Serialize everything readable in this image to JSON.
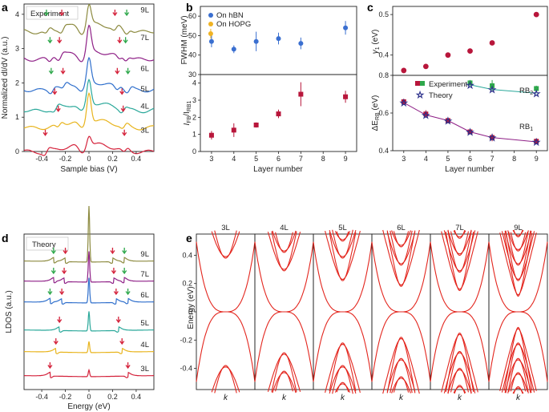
{
  "figure": {
    "panel_letters": [
      "a",
      "b",
      "c",
      "d",
      "e"
    ],
    "colors": {
      "olive": "#8c8a3f",
      "purple": "#8e1f86",
      "blue": "#2f6fcc",
      "teal": "#2aa89a",
      "gold": "#e8b41c",
      "red": "#d4213a",
      "green": "#2ea84b",
      "crimson": "#b8163b",
      "navy": "#2b2f8a",
      "hbn": "#3a6fd0",
      "hopg": "#f0b323",
      "band": "#e3261e"
    }
  },
  "chart_data": [
    {
      "id": "a",
      "type": "line",
      "legend_box": "Experiment",
      "xlabel": "Sample bias (V)",
      "ylabel": "Normalized dI/dV (a.u.)",
      "xlim": [
        -0.55,
        0.55
      ],
      "ylim": [
        0,
        4.3
      ],
      "xticks": [
        "-0.4",
        "-0.2",
        "0",
        "0.2",
        "0.4"
      ],
      "xtick_values": [
        -0.4,
        -0.2,
        0,
        0.2,
        0.4
      ],
      "yticks": [
        "0",
        "1",
        "2",
        "3",
        "4"
      ],
      "ytick_values": [
        0,
        1,
        2,
        3,
        4
      ],
      "series": [
        {
          "name": "9L",
          "color_key": "olive",
          "offset": 3.6,
          "peak": 0.6,
          "features": [
            -0.36,
            -0.23,
            0.22,
            0.32
          ],
          "green": [
            -0.36,
            0.32
          ]
        },
        {
          "name": "7L",
          "color_key": "purple",
          "offset": 2.8,
          "peak": 0.75,
          "features": [
            -0.33,
            -0.25,
            0.26,
            0.31
          ],
          "green": [
            -0.33,
            0.31
          ]
        },
        {
          "name": "6L",
          "color_key": "blue",
          "offset": 1.9,
          "peak": 0.7,
          "features": [
            -0.32,
            -0.22,
            0.24,
            0.33
          ],
          "green": [
            -0.32,
            0.33
          ]
        },
        {
          "name": "5L",
          "color_key": "teal",
          "offset": 1.3,
          "peak": 0.7,
          "features": [
            -0.29,
            0.28
          ],
          "green": []
        },
        {
          "name": "4L",
          "color_key": "gold",
          "offset": 0.8,
          "peak": 0.85,
          "features": [
            -0.26,
            0.29
          ],
          "green": []
        },
        {
          "name": "3L",
          "color_key": "red",
          "offset": 0.1,
          "peak": 0.3,
          "features": [
            -0.37,
            0.3
          ],
          "green": []
        }
      ]
    },
    {
      "id": "b_top",
      "type": "scatter",
      "ylabel": "FWHM (meV)",
      "xlim": [
        2.5,
        9.5
      ],
      "ylim": [
        30,
        65
      ],
      "yticks": [
        "30",
        "40",
        "50",
        "60"
      ],
      "ytick_values": [
        30,
        40,
        50,
        60
      ],
      "legend": [
        "On hBN",
        "On HOPG"
      ],
      "series": [
        {
          "name": "On hBN",
          "color_key": "hbn",
          "x": [
            3,
            4,
            5,
            6,
            7,
            9
          ],
          "y": [
            47,
            43,
            47,
            48.5,
            46,
            54
          ],
          "err": [
            3,
            2,
            5,
            3,
            3,
            3.5
          ]
        },
        {
          "name": "On HOPG",
          "color_key": "hopg",
          "x": [
            3
          ],
          "y": [
            51
          ],
          "err": [
            2.5
          ]
        }
      ]
    },
    {
      "id": "b_bottom",
      "type": "scatter",
      "ylabel": "I_FB/I_RB1",
      "ylabel_main": "I",
      "ylabel_sub1": "FB",
      "ylabel_mid": "/I",
      "ylabel_sub2": "RB1",
      "xlabel": "Layer number",
      "xlim": [
        2.5,
        9.5
      ],
      "ylim": [
        0,
        4.5
      ],
      "xticks": [
        "3",
        "4",
        "5",
        "6",
        "7",
        "8",
        "9"
      ],
      "xtick_values": [
        3,
        4,
        5,
        6,
        7,
        8,
        9
      ],
      "yticks": [
        "0",
        "1",
        "2",
        "3",
        "4"
      ],
      "ytick_values": [
        0,
        1,
        2,
        3,
        4
      ],
      "series": [
        {
          "color_key": "crimson",
          "x": [
            3,
            4,
            5,
            6,
            7,
            9
          ],
          "y": [
            0.95,
            1.25,
            1.55,
            2.2,
            3.35,
            3.2
          ],
          "err": [
            0.25,
            0.4,
            0.15,
            0.25,
            0.7,
            0.35
          ]
        }
      ]
    },
    {
      "id": "c_top",
      "type": "scatter",
      "ylabel": "γ1 (eV)",
      "ylabel_main": "γ",
      "ylabel_sub": "1",
      "ylabel_unit": " (eV)",
      "xlim": [
        2.5,
        9.5
      ],
      "ylim": [
        0.35,
        0.52
      ],
      "yticks": [
        "0.4",
        "0.5"
      ],
      "ytick_values": [
        0.4,
        0.5
      ],
      "series": [
        {
          "color_key": "crimson",
          "x": [
            3,
            4,
            5,
            6,
            7,
            9
          ],
          "y": [
            0.362,
            0.372,
            0.4,
            0.41,
            0.43,
            0.5
          ]
        }
      ]
    },
    {
      "id": "c_bottom",
      "type": "scatter",
      "ylabel": "ΔE_RB (eV)",
      "ylabel_main": "ΔE",
      "ylabel_sub": "RB",
      "ylabel_unit": " (eV)",
      "xlabel": "Layer number",
      "xlim": [
        2.5,
        9.5
      ],
      "ylim": [
        0.4,
        0.8
      ],
      "xticks": [
        "3",
        "4",
        "5",
        "6",
        "7",
        "8",
        "9"
      ],
      "xtick_values": [
        3,
        4,
        5,
        6,
        7,
        8,
        9
      ],
      "yticks": [
        "0.4",
        "0.6",
        "0.8"
      ],
      "ytick_values": [
        0.4,
        0.6,
        0.8
      ],
      "legend": [
        "Experiment",
        "Theory"
      ],
      "labels": {
        "rb2": "RB",
        "rb2_sub": "2",
        "rb1": "RB",
        "rb1_sub": "1"
      },
      "series": [
        {
          "name": "RB1 experiment",
          "color_key": "crimson",
          "x": [
            3,
            4,
            5,
            6,
            7,
            9
          ],
          "y": [
            0.66,
            0.595,
            0.56,
            0.5,
            0.47,
            0.45
          ],
          "err": [
            0.015,
            0.02,
            0.015,
            0.01,
            0.02,
            0.015
          ]
        },
        {
          "name": "RB1 theory",
          "color_key": "navy",
          "x": [
            3,
            4,
            5,
            6,
            7,
            9
          ],
          "y": [
            0.655,
            0.59,
            0.56,
            0.5,
            0.47,
            0.447
          ]
        },
        {
          "name": "RB2 experiment",
          "color_key": "green",
          "x": [
            6,
            7,
            9
          ],
          "y": [
            0.76,
            0.745,
            0.73
          ],
          "err": [
            0.015,
            0.03,
            0.015
          ]
        },
        {
          "name": "RB2 theory",
          "color_key": "navy",
          "x": [
            6,
            7,
            9
          ],
          "y": [
            0.75,
            0.725,
            0.705
          ]
        }
      ]
    },
    {
      "id": "d",
      "type": "line",
      "legend_box": "Theory",
      "xlabel": "Energy (eV)",
      "ylabel": "LDOS (a.u.)",
      "xlim": [
        -0.55,
        0.55
      ],
      "xticks": [
        "-0.4",
        "-0.2",
        "0",
        "0.2",
        "0.4"
      ],
      "xtick_values": [
        -0.4,
        -0.2,
        0,
        0.2,
        0.4
      ],
      "series": [
        {
          "name": "9L",
          "color_key": "olive",
          "features": [
            -0.3,
            -0.2,
            0.2,
            0.3
          ],
          "green": [
            -0.3,
            0.3
          ],
          "peak": 1.0
        },
        {
          "name": "7L",
          "color_key": "purple",
          "features": [
            -0.3,
            -0.21,
            0.21,
            0.3
          ],
          "green": [
            -0.3,
            0.3
          ],
          "peak": 0.55
        },
        {
          "name": "6L",
          "color_key": "blue",
          "features": [
            -0.33,
            -0.23,
            0.23,
            0.33
          ],
          "green": [
            -0.33,
            0.33
          ],
          "peak": 0.45
        },
        {
          "name": "5L",
          "color_key": "teal",
          "features": [
            -0.25,
            0.25
          ],
          "green": [],
          "peak": 0.35
        },
        {
          "name": "4L",
          "color_key": "gold",
          "features": [
            -0.28,
            0.28
          ],
          "green": [],
          "peak": 0.2
        },
        {
          "name": "3L",
          "color_key": "red",
          "features": [
            -0.33,
            0.33
          ],
          "green": [],
          "peak": 0.12
        }
      ]
    },
    {
      "id": "e",
      "type": "line",
      "ylabel": "Energy (eV)",
      "ylim": [
        -0.55,
        0.55
      ],
      "yticks": [
        "-0.4",
        "-0.2",
        "0",
        "0.2",
        "0.4"
      ],
      "ytick_values": [
        -0.4,
        -0.2,
        0,
        0.2,
        0.4
      ],
      "xlabel_each": "k",
      "panels": [
        {
          "name": "3L",
          "levels": [
            0.38
          ]
        },
        {
          "name": "4L",
          "levels": [
            0.29,
            0.42
          ]
        },
        {
          "name": "5L",
          "levels": [
            0.22,
            0.38,
            0.5
          ]
        },
        {
          "name": "6L",
          "levels": [
            0.18,
            0.33,
            0.46
          ]
        },
        {
          "name": "7L",
          "levels": [
            0.15,
            0.28,
            0.4,
            0.52
          ]
        },
        {
          "name": "9L",
          "levels": [
            0.11,
            0.22,
            0.33,
            0.43,
            0.53
          ]
        }
      ]
    }
  ]
}
